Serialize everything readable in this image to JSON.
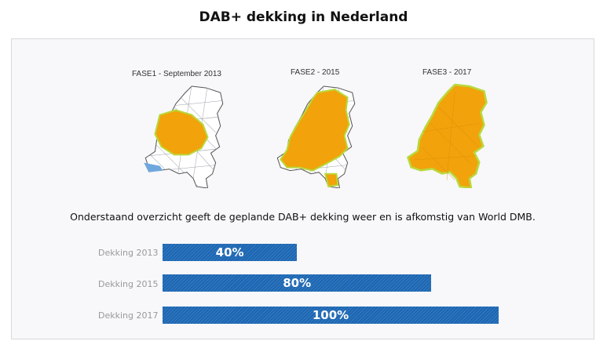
{
  "page_title": "DAB+ dekking in Nederland",
  "maps": [
    {
      "label": "FASE1 - September 2013"
    },
    {
      "label": "FASE2 - 2015"
    },
    {
      "label": "FASE3 - 2017"
    }
  ],
  "description": "Onderstaand overzicht geeft de geplande DAB+ dekking weer en is afkomstig van World DMB.",
  "coverage": [
    {
      "label": "Dekking 2013",
      "value_text": "40%",
      "value": 40
    },
    {
      "label": "Dekking 2015",
      "value_text": "80%",
      "value": 80
    },
    {
      "label": "Dekking 2017",
      "value_text": "100%",
      "value": 100
    }
  ],
  "colors": {
    "bar": "#1b66b3",
    "coverage_fill": "#f2a20b",
    "coverage_edge": "#b9d83a"
  }
}
